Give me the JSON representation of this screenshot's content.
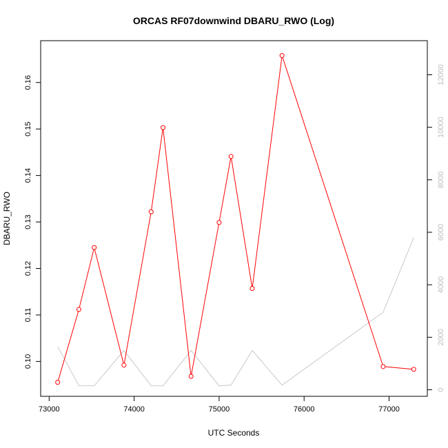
{
  "chart_data": {
    "type": "line",
    "title": "ORCAS RF07downwind DBARU_RWO (Log)",
    "xlabel": "UTC Seconds",
    "ylabel": "DBARU_RWO",
    "ylabel_right": "",
    "xlim": [
      72900,
      77450
    ],
    "ylim": [
      0.0925,
      0.169
    ],
    "ylim_right": [
      -250,
      13300
    ],
    "x_ticks": [
      73000,
      74000,
      75000,
      76000,
      77000
    ],
    "y_ticks": [
      0.1,
      0.11,
      0.12,
      0.13,
      0.14,
      0.15,
      0.16
    ],
    "y_ticks_right": [
      0,
      2000,
      4000,
      6000,
      8000,
      10000,
      12000
    ],
    "grid": false,
    "colors": {
      "primary": "#ff0000",
      "secondary": "#c8c8c8"
    },
    "series": [
      {
        "axis": "left",
        "style": "line-with-open-circles",
        "x": [
          73100,
          73350,
          73530,
          73880,
          74200,
          74340,
          74670,
          75000,
          75140,
          75390,
          75740,
          76930,
          77290
        ],
        "values": [
          0.0955,
          0.1112,
          0.1245,
          0.0992,
          0.1322,
          0.1503,
          0.0968,
          0.1299,
          0.1441,
          0.1157,
          0.1658,
          0.0989,
          0.0983
        ]
      },
      {
        "axis": "right",
        "style": "line",
        "x": [
          73100,
          73350,
          73530,
          73880,
          74200,
          74340,
          74670,
          75000,
          75140,
          75390,
          75740,
          76930,
          77290
        ],
        "values": [
          1650,
          150,
          150,
          1500,
          150,
          150,
          1500,
          150,
          175,
          1500,
          175,
          2950,
          5800
        ]
      }
    ]
  }
}
